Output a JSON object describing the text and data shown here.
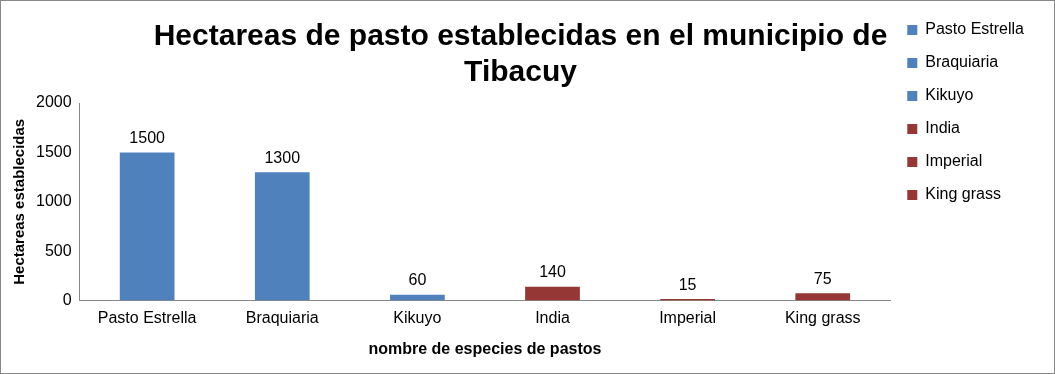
{
  "chart_data": {
    "type": "bar",
    "title": "Hectareas de pasto establecidas en el municipio de Tibacuy",
    "xlabel": "nombre de especies de pastos",
    "ylabel": "Hectareas establecidas",
    "categories": [
      "Pasto Estrella",
      "Braquiaria",
      "Kikuyo",
      "India",
      "Imperial",
      "King grass"
    ],
    "series": [
      {
        "name": "Pasto Estrella",
        "color": "#4f81bd",
        "values": [
          1500,
          null,
          null,
          null,
          null,
          null
        ]
      },
      {
        "name": "Braquiaria",
        "color": "#4f81bd",
        "values": [
          null,
          1300,
          null,
          null,
          null,
          null
        ]
      },
      {
        "name": "Kikuyo",
        "color": "#4f81bd",
        "values": [
          null,
          null,
          60,
          null,
          null,
          null
        ]
      },
      {
        "name": "India",
        "color": "#953735",
        "values": [
          null,
          null,
          null,
          140,
          null,
          null
        ]
      },
      {
        "name": "Imperial",
        "color": "#953735",
        "values": [
          null,
          null,
          null,
          null,
          15,
          null
        ]
      },
      {
        "name": "King grass",
        "color": "#953735",
        "values": [
          null,
          null,
          null,
          null,
          null,
          75
        ]
      }
    ],
    "ylim": [
      0,
      2000
    ],
    "yticks": [
      0,
      500,
      1000,
      1500,
      2000
    ],
    "grid": false,
    "legend": "right",
    "data_labels": true
  }
}
